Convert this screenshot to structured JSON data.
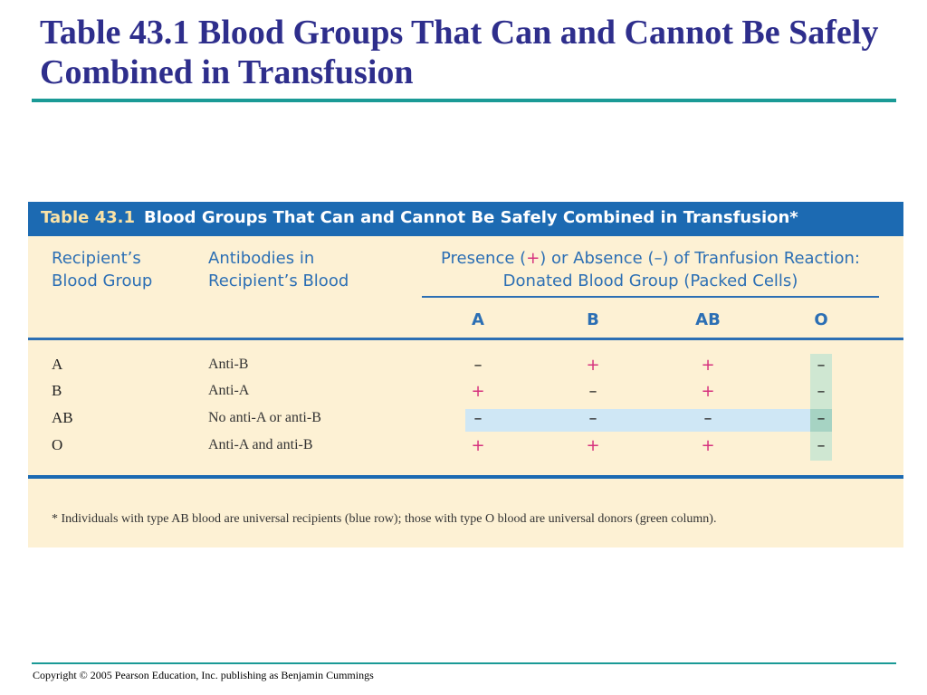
{
  "slide": {
    "title": "Table 43.1 Blood Groups That Can and Cannot Be Safely Combined in Transfusion",
    "copyright": "Copyright © 2005 Pearson Education, Inc. publishing as Benjamin Cummings"
  },
  "table": {
    "number": "Table 43.1",
    "caption": "Blood Groups That Can and Cannot Be Safely Combined in Transfusion*",
    "headers": {
      "recipient": [
        "Recipient’s",
        "Blood Group"
      ],
      "antibodies": [
        "Antibodies in",
        "Recipient’s Blood"
      ],
      "presence_line1": {
        "a": "Presence (",
        "plus": "+",
        "b": ") or Absence (–) of Tranfusion Reaction:"
      },
      "presence_line2": "Donated Blood Group (Packed Cells)"
    },
    "donor_columns": [
      "A",
      "B",
      "AB",
      "O"
    ],
    "rows": [
      {
        "group": "A",
        "antibodies": "Anti-B",
        "reactions": [
          "–",
          "+",
          "+",
          "–"
        ]
      },
      {
        "group": "B",
        "antibodies": "Anti-A",
        "reactions": [
          "+",
          "–",
          "+",
          "–"
        ]
      },
      {
        "group": "AB",
        "antibodies": "No anti-A or anti-B",
        "reactions": [
          "–",
          "–",
          "–",
          "–"
        ]
      },
      {
        "group": "O",
        "antibodies": "Anti-A and anti-B",
        "reactions": [
          "+",
          "+",
          "+",
          "–"
        ]
      }
    ],
    "footnote": "* Individuals with type AB blood are universal recipients (blue row); those with type O blood are universal donors (green column).",
    "colors": {
      "banner": "#1c6ab2",
      "background": "#fdf1d4",
      "header_text": "#2c6fb4",
      "plus": "#d6327e",
      "universal_recipient_row": "#cfe7f5",
      "universal_donor_column": "#cfe7d2"
    }
  }
}
